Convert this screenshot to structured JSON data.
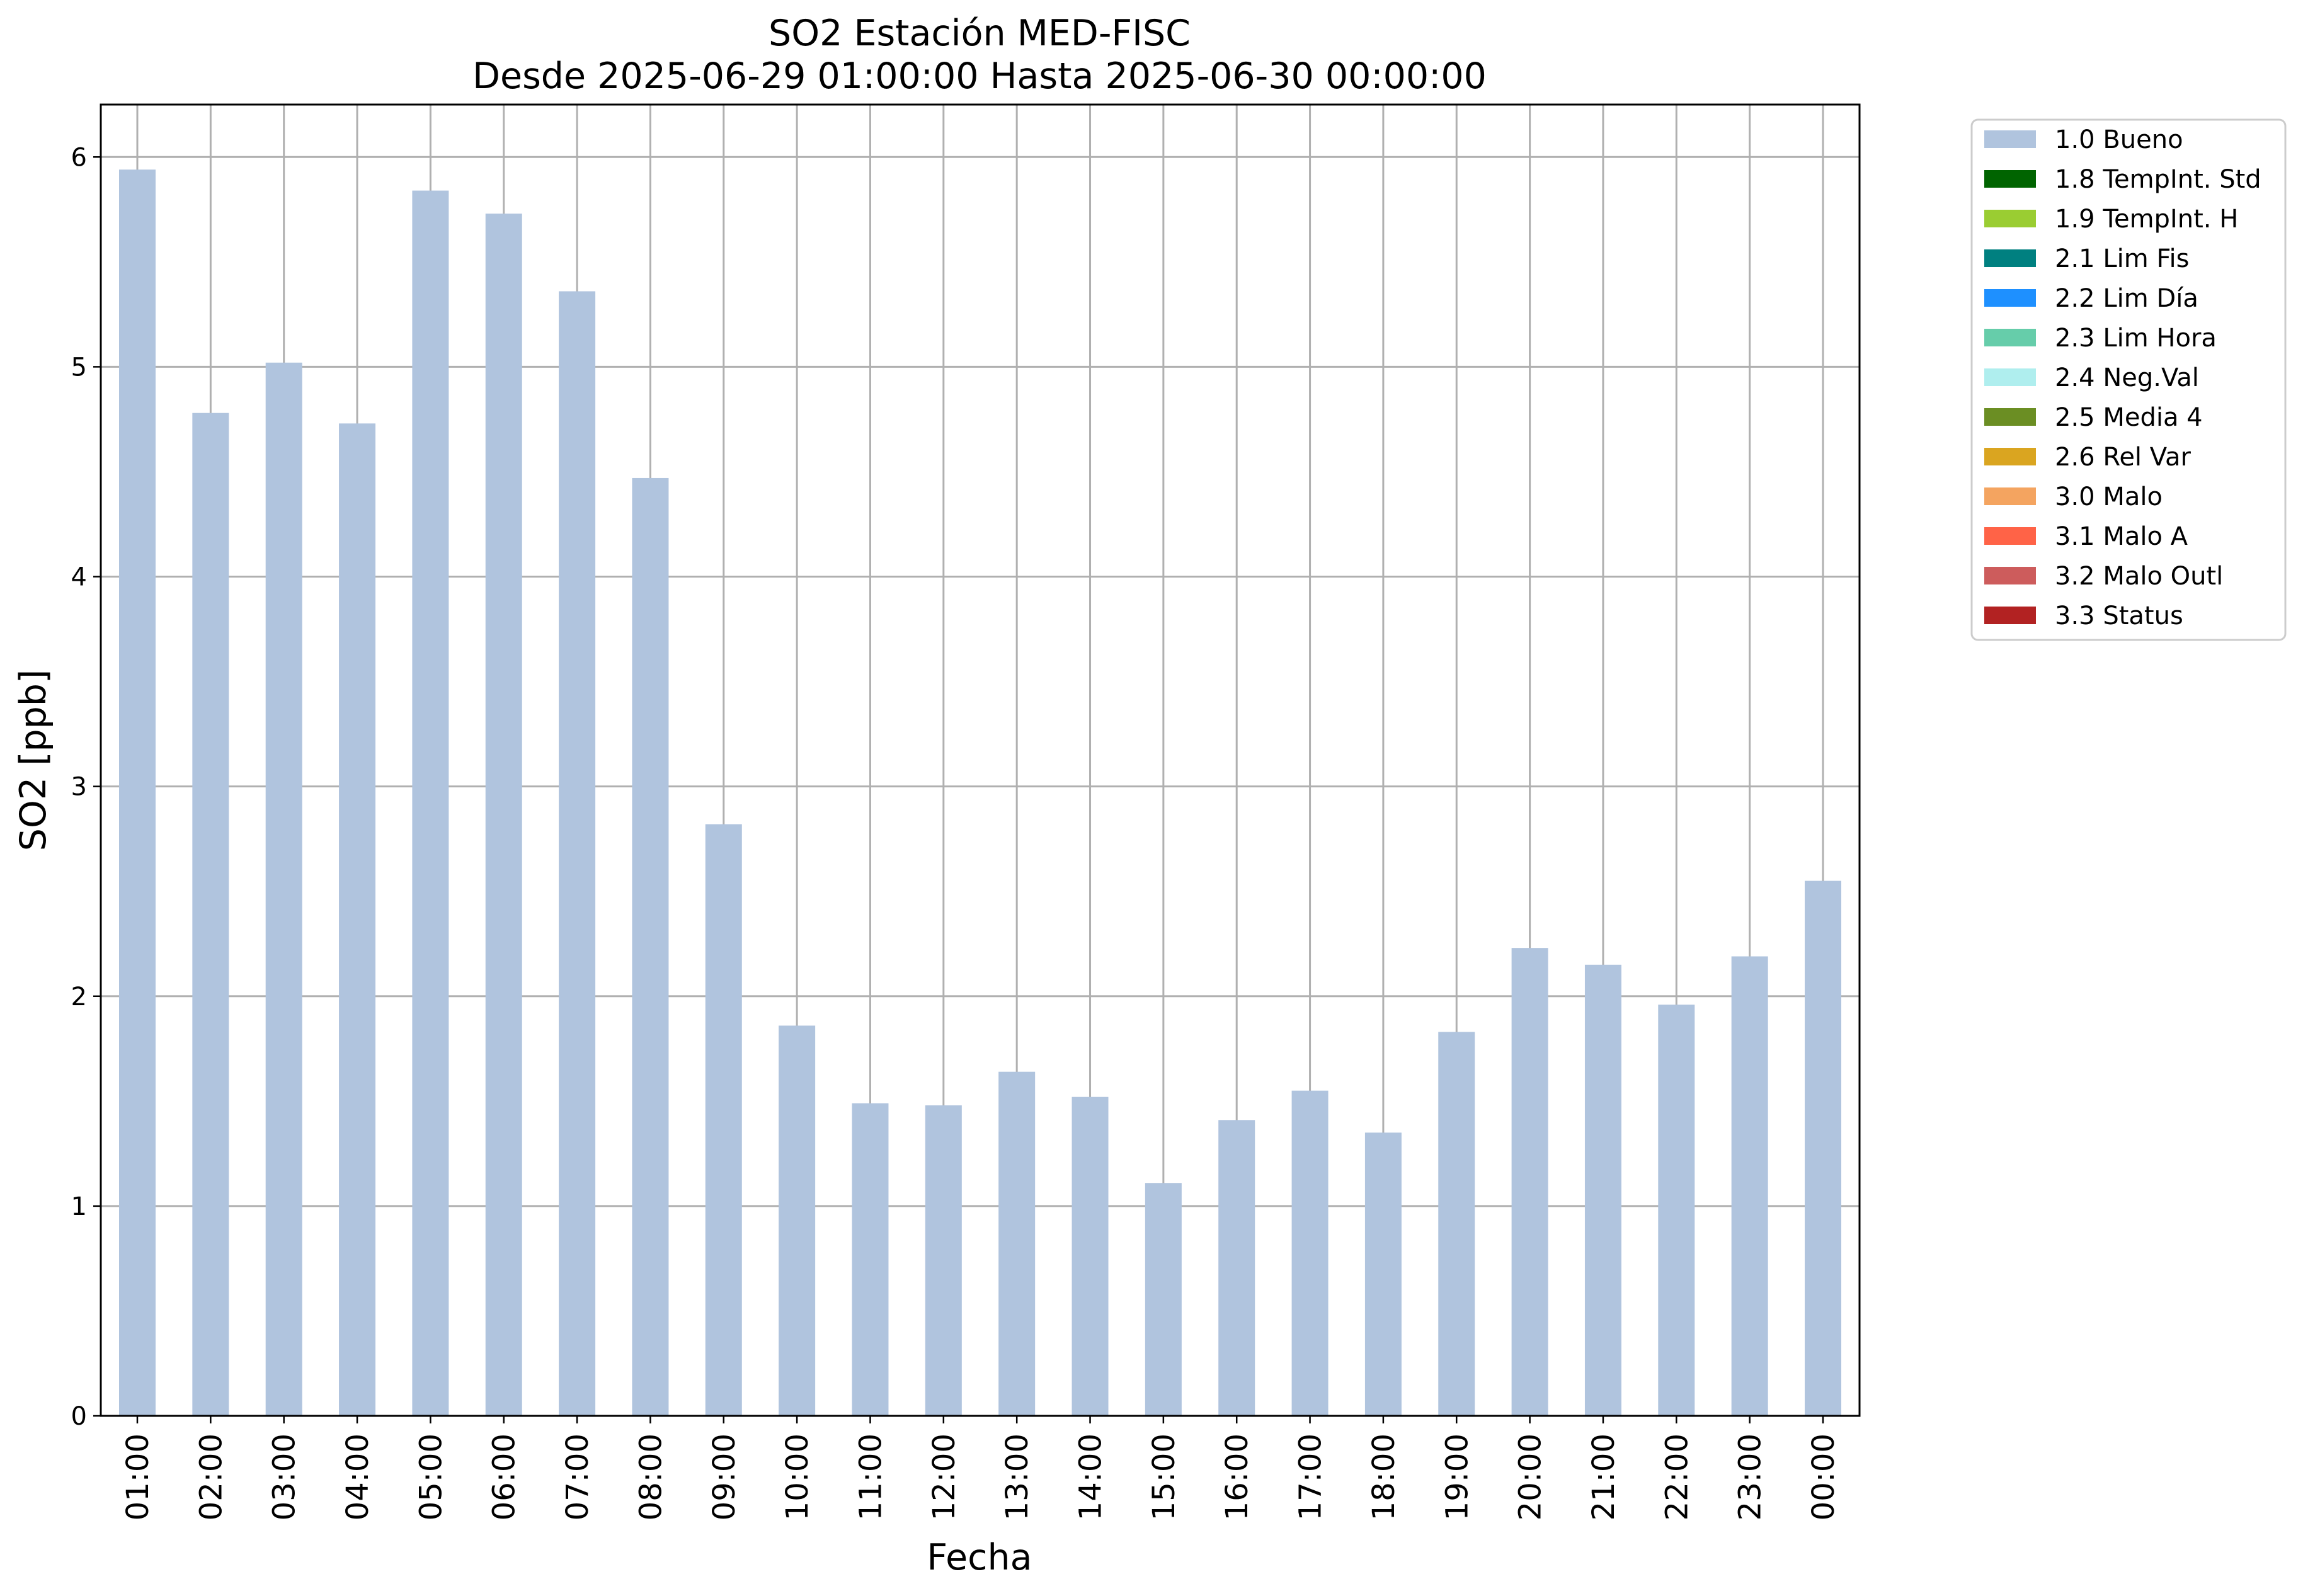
{
  "chart_data": {
    "type": "bar",
    "title": "SO2 Estación MED-FISC",
    "subtitle": "Desde 2025-06-29 01:00:00 Hasta 2025-06-30 00:00:00",
    "xlabel": "Fecha",
    "ylabel": "SO2 [ppb]",
    "ylim": [
      0,
      6.25
    ],
    "yticks": [
      "0",
      "1",
      "2",
      "3",
      "4",
      "5",
      "6"
    ],
    "grid": true,
    "legend_position": "outside-top-right",
    "categories": [
      "01:00",
      "02:00",
      "03:00",
      "04:00",
      "05:00",
      "06:00",
      "07:00",
      "08:00",
      "09:00",
      "10:00",
      "11:00",
      "12:00",
      "13:00",
      "14:00",
      "15:00",
      "16:00",
      "17:00",
      "18:00",
      "19:00",
      "20:00",
      "21:00",
      "22:00",
      "23:00",
      "00:00"
    ],
    "series": [
      {
        "name": "1.0 Bueno",
        "color": "#b0c4de",
        "values": [
          5.94,
          4.78,
          5.02,
          4.73,
          5.84,
          5.73,
          5.36,
          4.47,
          2.82,
          1.86,
          1.49,
          1.48,
          1.64,
          1.52,
          1.11,
          1.41,
          1.55,
          1.35,
          1.83,
          2.23,
          2.15,
          1.96,
          2.19,
          2.55
        ]
      }
    ],
    "legend": [
      {
        "label": "1.0 Bueno",
        "color": "#b0c4de"
      },
      {
        "label": "1.8 TempInt. Std",
        "color": "#006400"
      },
      {
        "label": "1.9 TempInt. H",
        "color": "#9acd32"
      },
      {
        "label": "2.1 Lim Fis",
        "color": "#008080"
      },
      {
        "label": "2.2 Lim Día",
        "color": "#1e90ff"
      },
      {
        "label": "2.3 Lim Hora",
        "color": "#66cdaa"
      },
      {
        "label": "2.4 Neg.Val",
        "color": "#afeeee"
      },
      {
        "label": "2.5 Media 4",
        "color": "#6b8e23"
      },
      {
        "label": "2.6 Rel Var",
        "color": "#daa520"
      },
      {
        "label": "3.0 Malo",
        "color": "#f4a460"
      },
      {
        "label": "3.1 Malo A",
        "color": "#ff6347"
      },
      {
        "label": "3.2 Malo Outl",
        "color": "#cd5c5c"
      },
      {
        "label": "3.3 Status",
        "color": "#b22222"
      }
    ]
  }
}
